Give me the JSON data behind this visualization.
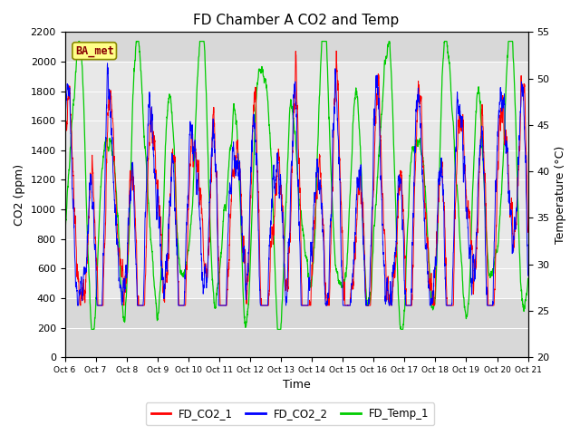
{
  "title": "FD Chamber A CO2 and Temp",
  "xlabel": "Time",
  "ylabel_left": "CO2 (ppm)",
  "ylabel_right": "Temperature (°C)",
  "ylim_left": [
    0,
    2200
  ],
  "ylim_right": [
    20,
    55
  ],
  "yticks_left": [
    0,
    200,
    400,
    600,
    800,
    1000,
    1200,
    1400,
    1600,
    1800,
    2000,
    2200
  ],
  "yticks_right": [
    20,
    25,
    30,
    35,
    40,
    45,
    50,
    55
  ],
  "xtick_labels": [
    "Oct 6",
    "Oct 7",
    "Oct 8",
    "Oct 9",
    "Oct 10",
    "Oct 11",
    "Oct 12",
    "Oct 13",
    "Oct 14",
    "Oct 15",
    "Oct 16",
    "Oct 17",
    "Oct 18",
    "Oct 19",
    "Oct 20",
    "Oct 21"
  ],
  "annotation_text": "BA_met",
  "legend_labels": [
    "FD_CO2_1",
    "FD_CO2_2",
    "FD_Temp_1"
  ],
  "line_colors": [
    "red",
    "blue",
    "#00cc00"
  ],
  "plot_bg_color": "#d8d8d8",
  "band_color": "#e8e8e8",
  "grid_color": "white",
  "title_fontsize": 11,
  "axis_fontsize": 9,
  "tick_fontsize": 8
}
